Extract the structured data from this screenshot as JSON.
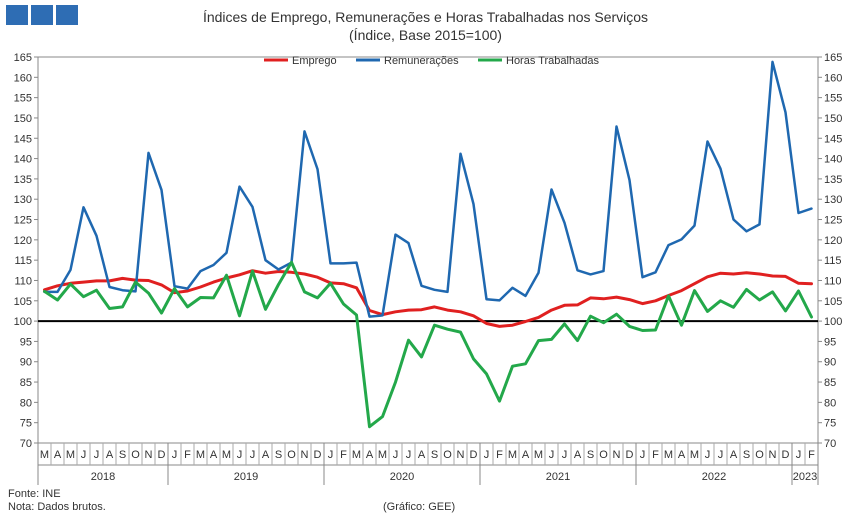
{
  "header": {
    "title": "Índices de Emprego, Remunerações e Horas Trabalhadas nos Serviços",
    "subtitle": "(Índice, Base 2015=100)"
  },
  "footer": {
    "source": "Fonte: INE",
    "note": "Nota: Dados brutos.",
    "credit": "(Gráfico: GEE)"
  },
  "chart_data": {
    "type": "line",
    "ylim": [
      70,
      165
    ],
    "yticks": [
      70,
      75,
      80,
      85,
      90,
      95,
      100,
      105,
      110,
      115,
      120,
      125,
      130,
      135,
      140,
      145,
      150,
      155,
      160,
      165
    ],
    "reference_line": 100,
    "grid": false,
    "legend_position": "top",
    "month_labels": [
      "M",
      "A",
      "M",
      "J",
      "J",
      "A",
      "S",
      "O",
      "N",
      "D",
      "J",
      "F",
      "M",
      "A",
      "M",
      "J",
      "J",
      "A",
      "S",
      "O",
      "N",
      "D",
      "J",
      "F",
      "M",
      "A",
      "M",
      "J",
      "J",
      "A",
      "S",
      "O",
      "N",
      "D",
      "J",
      "F",
      "M",
      "A",
      "M",
      "J",
      "J",
      "A",
      "S",
      "O",
      "N",
      "D",
      "J",
      "F",
      "M",
      "A",
      "M",
      "J",
      "J",
      "A",
      "S",
      "O",
      "N",
      "D",
      "J",
      "F"
    ],
    "years": [
      {
        "label": "2018",
        "start": 0,
        "count": 10
      },
      {
        "label": "2019",
        "start": 10,
        "count": 12
      },
      {
        "label": "2020",
        "start": 22,
        "count": 12
      },
      {
        "label": "2021",
        "start": 34,
        "count": 12
      },
      {
        "label": "2022",
        "start": 46,
        "count": 12
      },
      {
        "label": "2023",
        "start": 58,
        "count": 2
      }
    ],
    "series": [
      {
        "name": "Emprego",
        "color": "#e02020",
        "width": 3,
        "values": [
          107.7,
          108.7,
          109.3,
          109.6,
          109.9,
          109.9,
          110.5,
          110.1,
          110.0,
          108.9,
          107.0,
          107.4,
          108.4,
          109.6,
          110.6,
          111.4,
          112.4,
          111.8,
          112.2,
          112.0,
          111.6,
          110.8,
          109.4,
          109.2,
          108.2,
          102.6,
          101.6,
          102.3,
          102.7,
          102.8,
          103.5,
          102.7,
          102.3,
          101.3,
          99.4,
          98.7,
          99.0,
          99.9,
          100.9,
          102.7,
          103.9,
          104.0,
          105.7,
          105.5,
          105.9,
          105.3,
          104.3,
          105.0,
          106.3,
          107.5,
          109.2,
          110.9,
          111.8,
          111.6,
          111.9,
          111.6,
          111.1,
          111.0,
          109.3,
          109.2
        ]
      },
      {
        "name": "Remunerações",
        "color": "#1f68b0",
        "width": 2.5,
        "values": [
          107.2,
          107.2,
          112.6,
          128.0,
          121.0,
          108.4,
          107.6,
          107.3,
          141.4,
          132.3,
          108.6,
          108.0,
          112.3,
          113.8,
          116.8,
          133.1,
          128.1,
          115.0,
          112.7,
          114.4,
          146.7,
          137.4,
          114.2,
          114.2,
          114.4,
          101.1,
          101.4,
          121.3,
          119.2,
          108.7,
          107.7,
          107.2,
          141.2,
          128.8,
          105.4,
          105.1,
          108.2,
          106.2,
          111.9,
          132.4,
          124.2,
          112.5,
          111.5,
          112.3,
          147.9,
          134.7,
          110.8,
          112.0,
          118.7,
          120.1,
          123.5,
          144.2,
          137.5,
          125.0,
          122.1,
          123.8,
          163.8,
          151.4,
          126.6,
          127.7
        ]
      },
      {
        "name": "Horas Trabalhadas",
        "color": "#23a84a",
        "width": 3,
        "values": [
          107.3,
          105.2,
          109.1,
          106.0,
          107.6,
          103.1,
          103.5,
          109.6,
          106.9,
          102.0,
          108.0,
          103.5,
          105.8,
          105.7,
          111.3,
          101.3,
          112.3,
          102.9,
          109.0,
          114.5,
          107.2,
          105.7,
          109.3,
          104.2,
          101.5,
          74.0,
          76.5,
          85.0,
          95.3,
          91.2,
          99.0,
          98.0,
          97.3,
          90.7,
          87.0,
          80.3,
          88.9,
          89.5,
          95.2,
          95.5,
          99.3,
          95.2,
          101.2,
          99.6,
          101.7,
          98.7,
          97.7,
          97.8,
          106.2,
          99.0,
          107.5,
          102.4,
          105.0,
          103.4,
          107.8,
          105.2,
          107.2,
          102.5,
          107.4,
          101.0
        ]
      }
    ]
  }
}
